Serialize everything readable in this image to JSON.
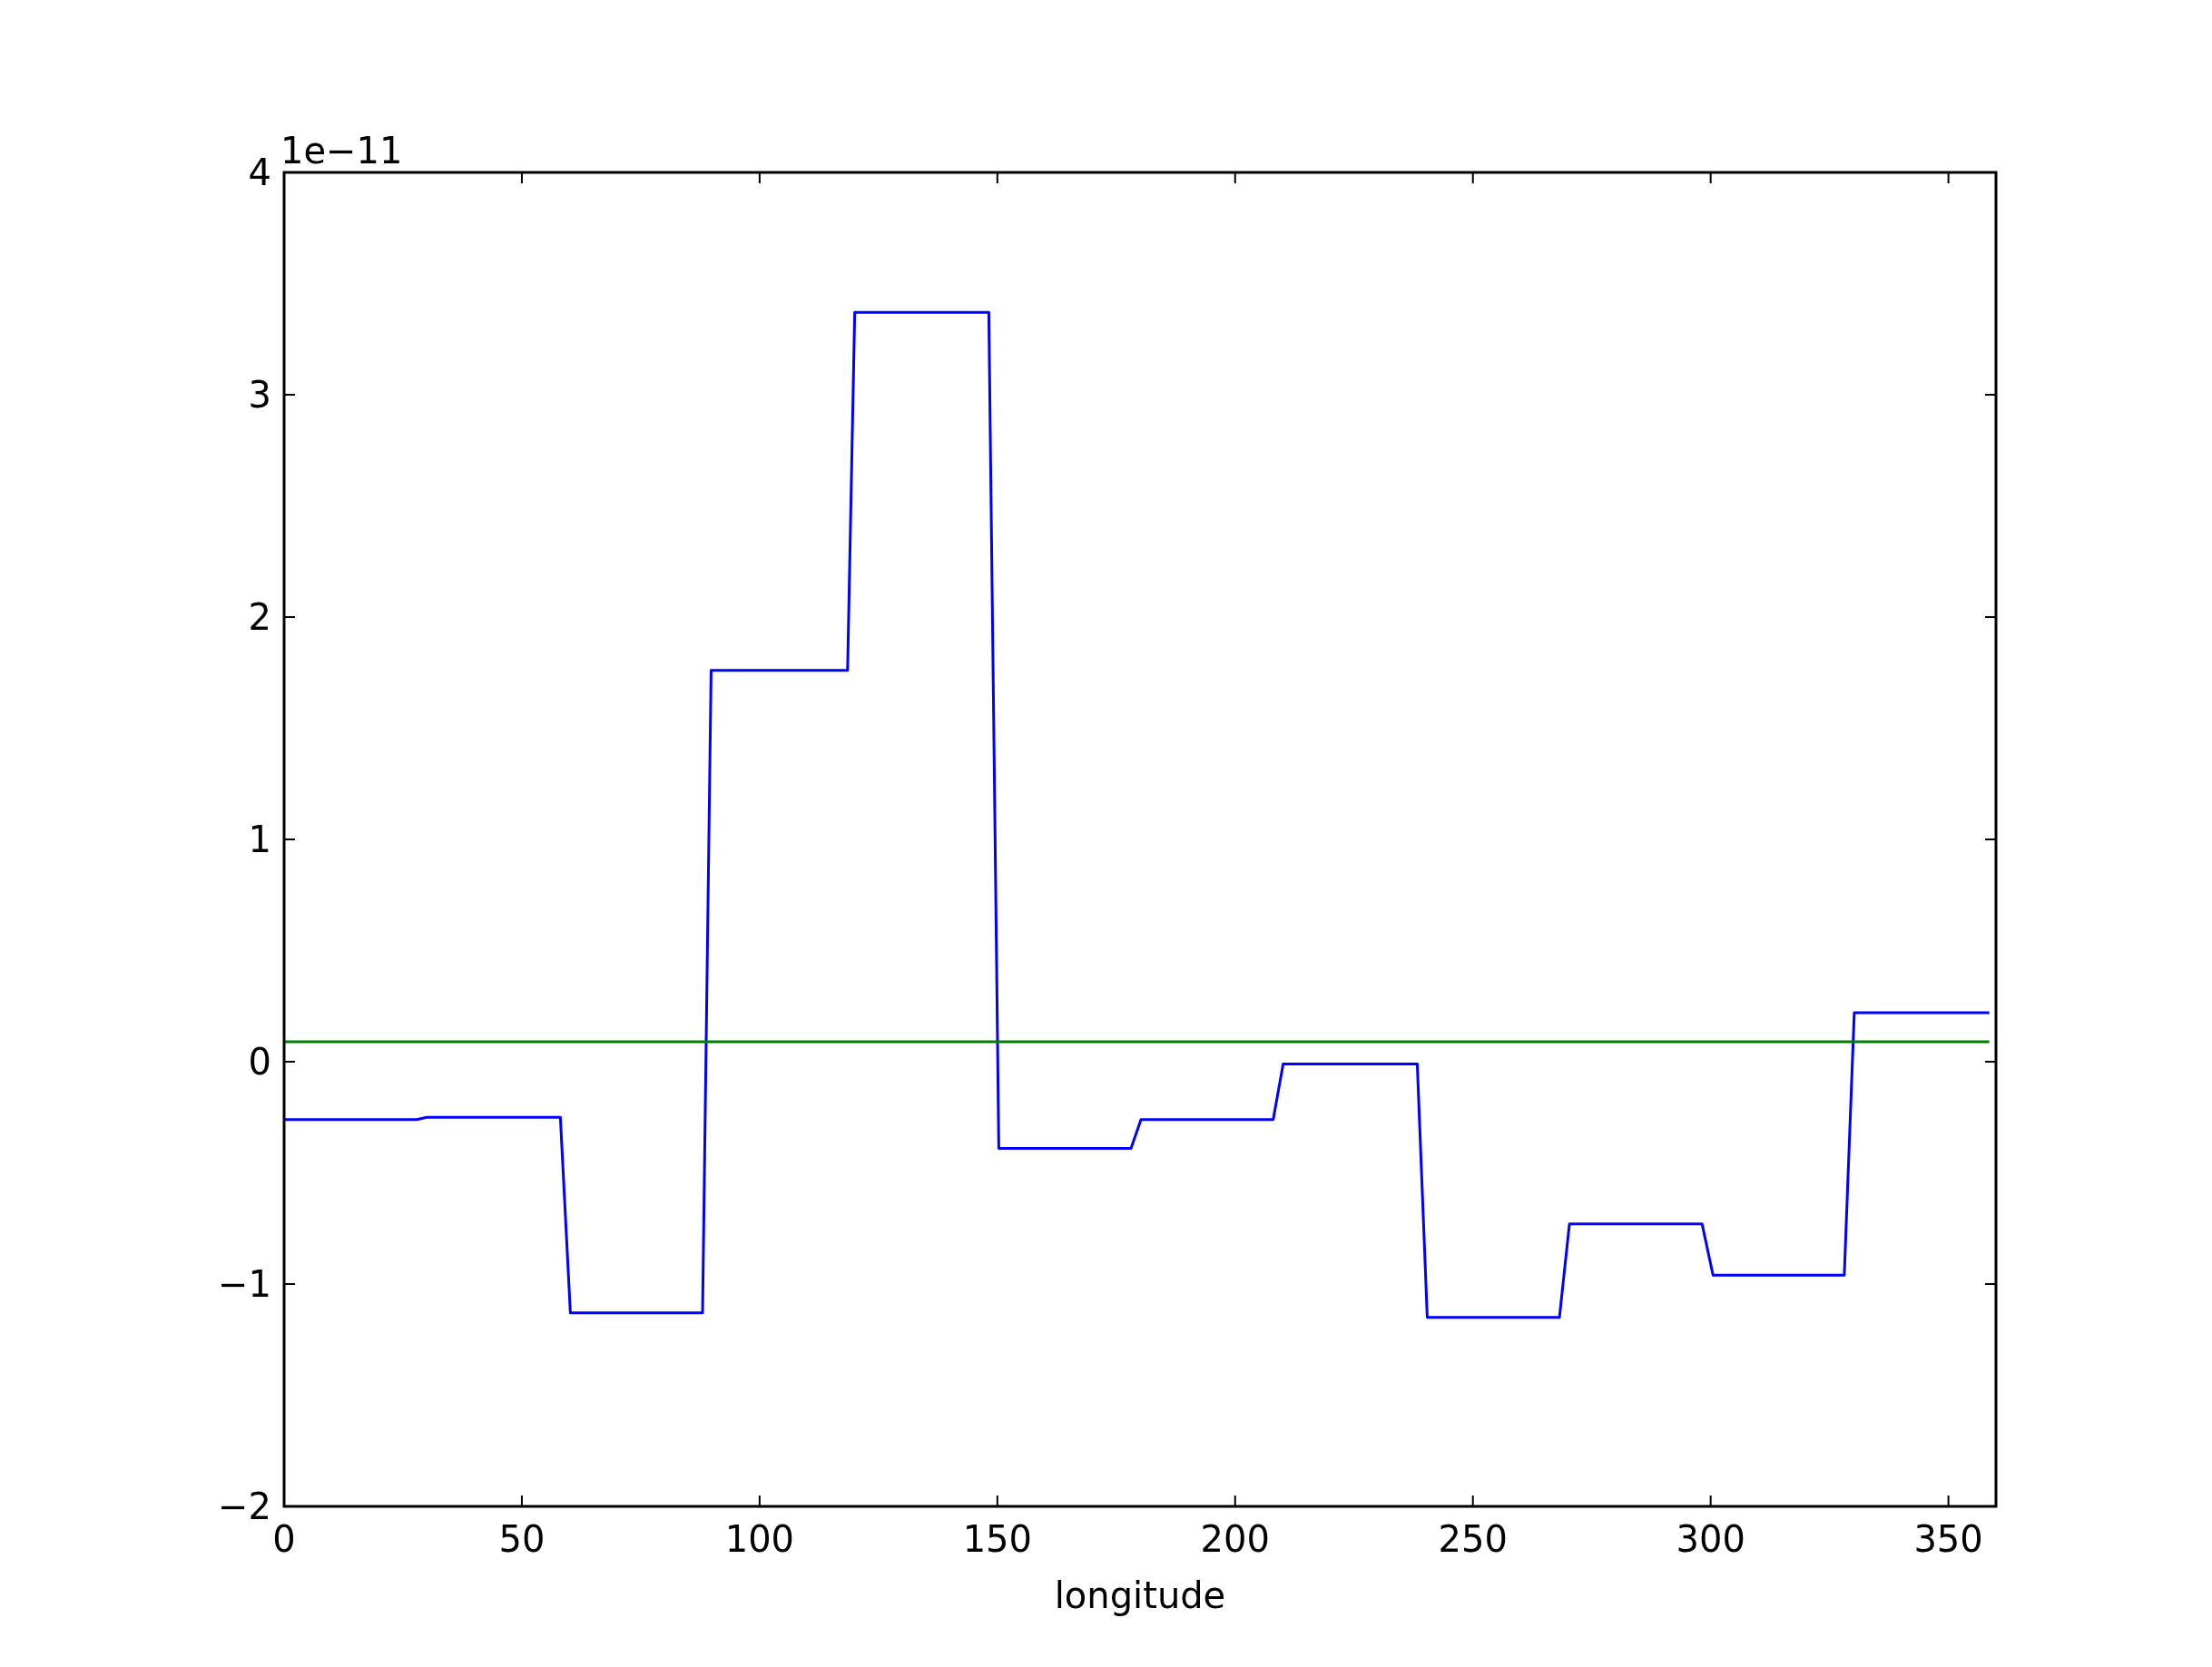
{
  "chart_data": {
    "type": "line",
    "xlabel": "longitude",
    "annotations": [
      "1e−11"
    ],
    "xlim": [
      0,
      360
    ],
    "xticks": [
      0,
      50,
      100,
      150,
      200,
      250,
      300,
      350
    ],
    "ylim": [
      -2,
      4
    ],
    "yticks": [
      {
        "value": -2,
        "label": "−2"
      },
      {
        "value": -1,
        "label": "−1"
      },
      0,
      1,
      2,
      3,
      4
    ],
    "grid": false,
    "marker": "none",
    "line_style": "solid",
    "series": [
      {
        "color": "#0000ff",
        "x": [
          0,
          27.9,
          30,
          58.1,
          60.2,
          88,
          89.8,
          118.5,
          120,
          148.2,
          150.3,
          178.1,
          180.2,
          208,
          210.1,
          238.3,
          240.4,
          268.2,
          270.3,
          298.2,
          300.5,
          328.1,
          330.2,
          358.6
        ],
        "values": [
          -0.26,
          -0.26,
          -0.25,
          -0.25,
          -1.13,
          -1.13,
          1.76,
          1.76,
          3.37,
          3.37,
          -0.39,
          -0.39,
          -0.26,
          -0.26,
          -0.01,
          -0.01,
          -1.15,
          -1.15,
          -0.73,
          -0.73,
          -0.96,
          -0.96,
          0.22,
          0.22
        ]
      },
      {
        "color": "#007f00",
        "x": [
          0,
          358.6
        ],
        "values": [
          0.09,
          0.09
        ]
      }
    ]
  }
}
